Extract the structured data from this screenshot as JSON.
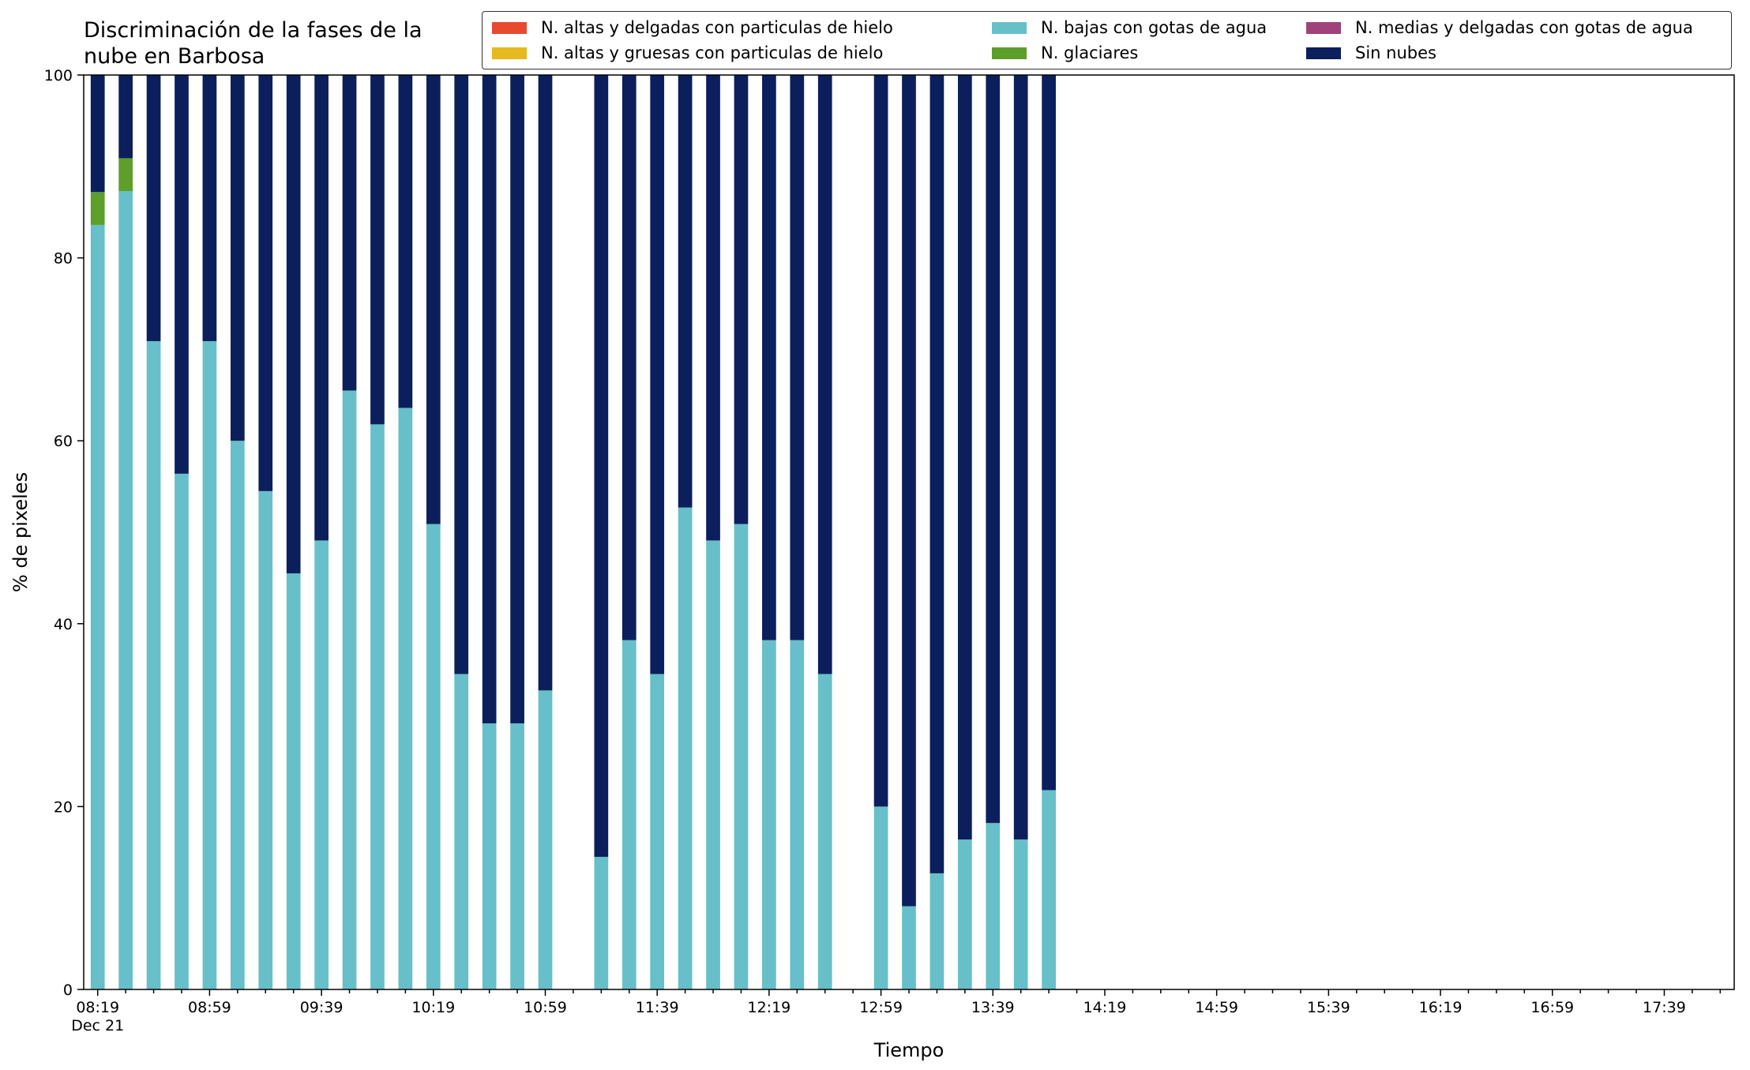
{
  "chart_data": {
    "type": "bar",
    "stacked": true,
    "title": "Discriminación de la fases de la\nnube en Barbosa",
    "xlabel": "Tiempo",
    "ylabel": "% de pixeles",
    "ylim": [
      0,
      100
    ],
    "yticks": [
      0,
      20,
      40,
      60,
      80,
      100
    ],
    "xlim": [
      "08:14",
      "18:04"
    ],
    "x_interval_minutes": 10,
    "x_tick_labels": [
      "08:19",
      "08:59",
      "09:39",
      "10:19",
      "10:59",
      "11:39",
      "12:19",
      "12:59",
      "13:39",
      "14:19",
      "14:59",
      "15:39",
      "16:19",
      "16:59",
      "17:39"
    ],
    "x_date_label": "Dec 21",
    "grid": false,
    "legend_position": "top-right",
    "legend_columns": 3,
    "x": [
      "08:19",
      "08:29",
      "08:39",
      "08:49",
      "08:59",
      "09:09",
      "09:19",
      "09:29",
      "09:39",
      "09:49",
      "09:59",
      "10:09",
      "10:19",
      "10:29",
      "10:39",
      "10:49",
      "10:59",
      "11:19",
      "11:29",
      "11:39",
      "11:49",
      "11:59",
      "12:09",
      "12:19",
      "12:29",
      "12:39",
      "12:59",
      "13:09",
      "13:19",
      "13:29",
      "13:39",
      "13:49",
      "13:59"
    ],
    "series": [
      {
        "name": "N. altas y delgadas con particulas de hielo",
        "color": "#e84a2f",
        "values": [
          0,
          0,
          0,
          0,
          0,
          0,
          0,
          0,
          0,
          0,
          0,
          0,
          0,
          0,
          0,
          0,
          0,
          0,
          0,
          0,
          0,
          0,
          0,
          0,
          0,
          0,
          0,
          0,
          0,
          0,
          0,
          0,
          0
        ]
      },
      {
        "name": "N. altas y gruesas con particulas de hielo",
        "color": "#e6b91e",
        "values": [
          0,
          0,
          0,
          0,
          0,
          0,
          0,
          0,
          0,
          0,
          0,
          0,
          0,
          0,
          0,
          0,
          0,
          0,
          0,
          0,
          0,
          0,
          0,
          0,
          0,
          0,
          0,
          0,
          0,
          0,
          0,
          0,
          0
        ]
      },
      {
        "name": "N. bajas con gotas de agua",
        "color": "#67bfc9",
        "values": [
          83.6,
          87.3,
          70.9,
          56.4,
          70.9,
          60.0,
          54.5,
          45.5,
          49.1,
          65.5,
          61.8,
          63.6,
          50.9,
          34.5,
          29.1,
          29.1,
          32.7,
          14.5,
          38.2,
          34.5,
          52.7,
          49.1,
          50.9,
          38.2,
          38.2,
          34.5,
          20.0,
          9.1,
          12.7,
          16.4,
          18.2,
          16.4,
          21.8
        ]
      },
      {
        "name": "N. glaciares",
        "color": "#5e9e2b",
        "values": [
          3.6,
          3.6,
          0,
          0,
          0,
          0,
          0,
          0,
          0,
          0,
          0,
          0,
          0,
          0,
          0,
          0,
          0,
          0,
          0,
          0,
          0,
          0,
          0,
          0,
          0,
          0,
          0,
          0,
          0,
          0,
          0,
          0,
          0
        ]
      },
      {
        "name": "N. medias y delgadas con gotas de agua",
        "color": "#a0437a",
        "values": [
          0,
          0,
          0,
          0,
          0,
          0,
          0,
          0,
          0,
          0,
          0,
          0,
          0,
          0,
          0,
          0,
          0,
          0,
          0,
          0,
          0,
          0,
          0,
          0,
          0,
          0,
          0,
          0,
          0,
          0,
          0,
          0,
          0
        ]
      },
      {
        "name": "Sin nubes",
        "color": "#0b1f5c",
        "values": [
          12.8,
          9.1,
          29.1,
          43.6,
          29.1,
          40.0,
          45.5,
          54.5,
          50.9,
          34.5,
          38.2,
          36.4,
          49.1,
          65.5,
          70.9,
          70.9,
          67.3,
          85.5,
          61.8,
          65.5,
          47.3,
          50.9,
          49.1,
          61.8,
          61.8,
          65.5,
          80.0,
          90.9,
          87.3,
          83.6,
          81.8,
          83.6,
          78.2
        ]
      }
    ]
  }
}
